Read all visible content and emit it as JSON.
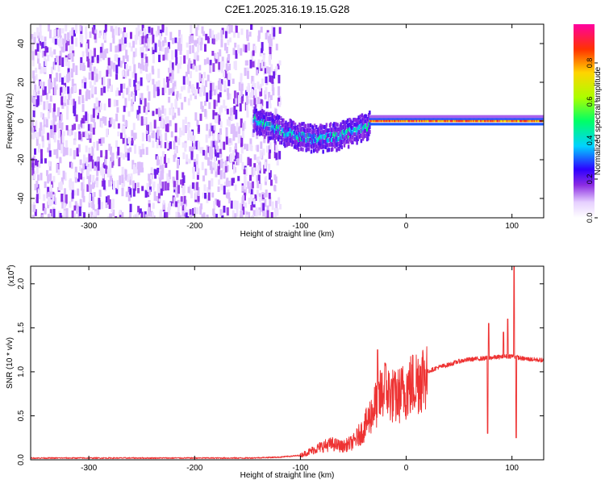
{
  "title": "C2E1.2025.316.19.15.G28",
  "chart_data": [
    {
      "type": "heatmap",
      "xlabel": "Height of straight line (km)",
      "ylabel": "Frequency (Hz)",
      "xlim": [
        -355,
        130
      ],
      "ylim": [
        -50,
        50
      ],
      "xticks": [
        -300,
        -200,
        -100,
        0,
        100
      ],
      "yticks": [
        -40,
        -20,
        0,
        20,
        40
      ],
      "colorbar": {
        "label": "Normalized spectral amplitude",
        "range": [
          0.0,
          1.0
        ],
        "ticks": [
          0.0,
          0.2,
          0.4,
          0.6,
          0.8
        ]
      },
      "features": [
        {
          "x_range": [
            -355,
            -120
          ],
          "freq_range": [
            -50,
            50
          ],
          "amplitude": [
            0.0,
            0.15
          ],
          "pattern": "diffuse noise"
        },
        {
          "x_range": [
            -145,
            -35
          ],
          "freq_center": [
            2,
            -8
          ],
          "amplitude": [
            0.1,
            0.5
          ],
          "pattern": "wandering trace"
        },
        {
          "x_range": [
            -35,
            130
          ],
          "freq_center": 0,
          "freq_width": 6,
          "amplitude": [
            0.7,
            0.95
          ],
          "pattern": "steady line"
        }
      ]
    },
    {
      "type": "line",
      "xlabel": "Height of straight line (km)",
      "ylabel": "SNR (10 * v/v)",
      "y_multiplier": "(x10^4)",
      "y_multiplier_base": "(x10",
      "y_multiplier_exp": "4",
      "y_multiplier_close": ")",
      "xlim": [
        -355,
        130
      ],
      "ylim": [
        0.0,
        2.2
      ],
      "xticks": [
        -300,
        -200,
        -100,
        0,
        100
      ],
      "yticks": [
        0.0,
        0.5,
        1.0,
        1.5,
        2.0
      ],
      "ytick_labels": [
        "0.0",
        "0.5",
        "1.0",
        "1.5",
        "2.0"
      ],
      "color": "#ee3333",
      "series": [
        {
          "name": "SNR",
          "x": [
            -355,
            -300,
            -250,
            -200,
            -150,
            -120,
            -100,
            -90,
            -80,
            -70,
            -60,
            -50,
            -40,
            -30,
            -20,
            -10,
            0,
            10,
            20,
            30,
            40,
            50,
            60,
            70,
            80,
            90,
            100,
            110,
            120,
            130
          ],
          "y": [
            0.02,
            0.02,
            0.02,
            0.02,
            0.02,
            0.03,
            0.05,
            0.1,
            0.15,
            0.18,
            0.15,
            0.2,
            0.35,
            0.6,
            0.8,
            0.7,
            0.8,
            0.9,
            1.0,
            1.05,
            1.08,
            1.12,
            1.14,
            1.15,
            1.16,
            1.17,
            1.18,
            1.15,
            1.14,
            1.13
          ]
        }
      ],
      "spikes": [
        {
          "x": -27,
          "y": 1.25
        },
        {
          "x": -20,
          "y": 1.1
        },
        {
          "x": 77,
          "y": 0.3
        },
        {
          "x": 78,
          "y": 1.55
        },
        {
          "x": 92,
          "y": 1.45
        },
        {
          "x": 96,
          "y": 1.6
        },
        {
          "x": 102,
          "y": 2.2
        },
        {
          "x": 104,
          "y": 0.25
        }
      ]
    }
  ]
}
